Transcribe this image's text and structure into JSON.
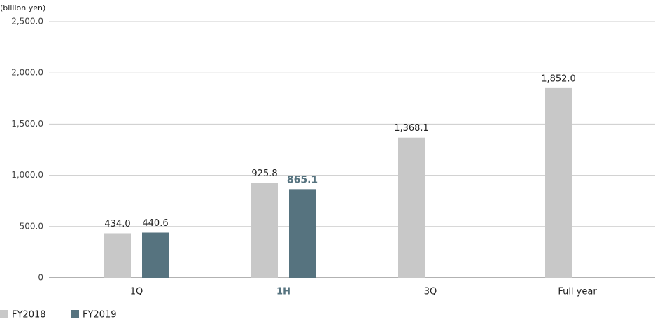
{
  "chart_data": {
    "type": "bar",
    "y_axis_label": "(billion yen)",
    "categories": [
      "1Q",
      "1H",
      "3Q",
      "Full year"
    ],
    "series": [
      {
        "name": "FY2018",
        "color": "#c8c8c8",
        "values": [
          434.0,
          925.8,
          1368.1,
          1852.0
        ],
        "value_labels": [
          "434.0",
          "925.8",
          "1,368.1",
          "1,852.0"
        ]
      },
      {
        "name": "FY2019",
        "color": "#56737f",
        "values": [
          440.6,
          865.1,
          null,
          null
        ],
        "value_labels": [
          "440.6",
          "865.1",
          null,
          null
        ]
      }
    ],
    "ylim": [
      0,
      2500
    ],
    "yticks": [
      0,
      {
        "value": 500,
        "label": "500.0"
      },
      {
        "value": 1000,
        "label": "1,000.0"
      },
      {
        "value": 1500,
        "label": "1,500.0"
      },
      {
        "value": 2000,
        "label": "2,000.0"
      },
      {
        "value": 2500,
        "label": "2,500.0"
      }
    ],
    "grid": true,
    "legend": "bottom-left",
    "highlight_index": 1,
    "highlight_color": "#56737f"
  }
}
